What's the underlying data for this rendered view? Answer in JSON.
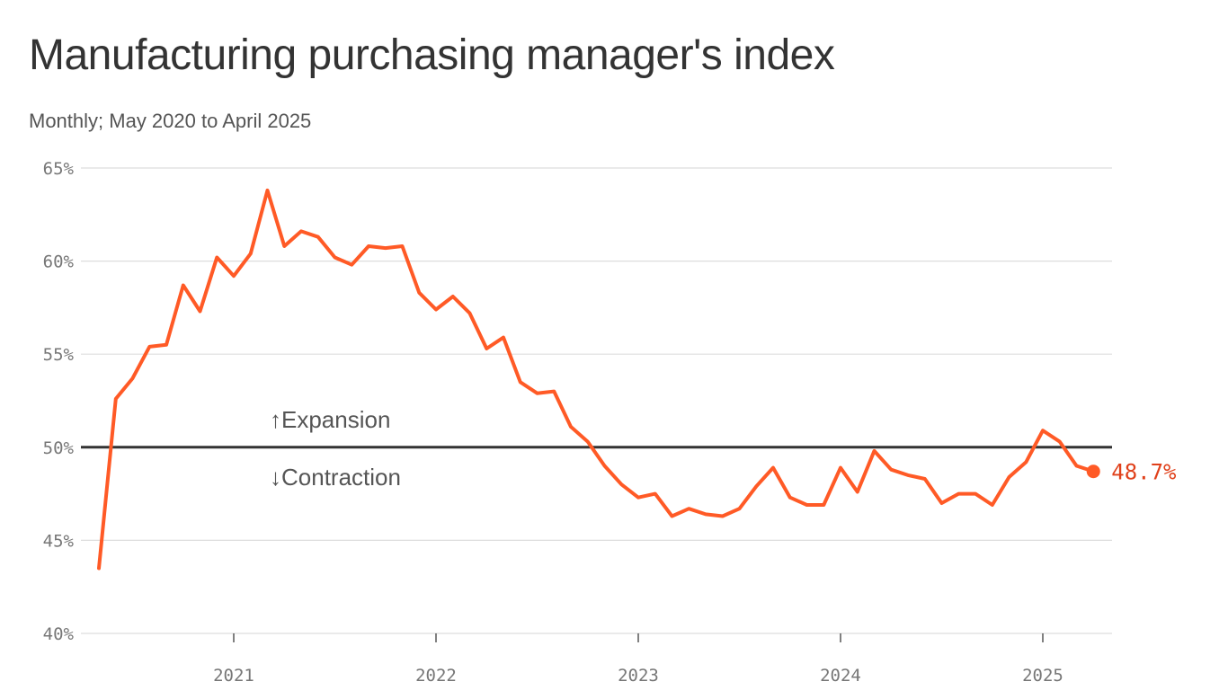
{
  "title": "Manufacturing purchasing manager's index",
  "subtitle": "Monthly; May 2020 to April 2025",
  "colors": {
    "line": "#ff5a26",
    "reference": "#333333",
    "end_label": "#e0401a"
  },
  "chart_data": {
    "type": "line",
    "title": "Manufacturing purchasing manager's index",
    "subtitle": "Monthly; May 2020 to April 2025",
    "xlabel": "",
    "ylabel": "",
    "ylim": [
      40,
      65
    ],
    "yticks": [
      40,
      45,
      50,
      55,
      60,
      65
    ],
    "ytick_labels": [
      "40%",
      "45%",
      "50%",
      "55%",
      "60%",
      "65%"
    ],
    "xticks": [
      2021,
      2022,
      2023,
      2024,
      2025
    ],
    "xtick_labels": [
      "2021",
      "2022",
      "2023",
      "2024",
      "2025"
    ],
    "grid": true,
    "reference_line": {
      "value": 50,
      "above_label": "↑Expansion",
      "below_label": "↓Contraction"
    },
    "end_label": "48.7%",
    "series": [
      {
        "name": "Manufacturing PMI",
        "x": [
          "2020-05",
          "2020-06",
          "2020-07",
          "2020-08",
          "2020-09",
          "2020-10",
          "2020-11",
          "2020-12",
          "2021-01",
          "2021-02",
          "2021-03",
          "2021-04",
          "2021-05",
          "2021-06",
          "2021-07",
          "2021-08",
          "2021-09",
          "2021-10",
          "2021-11",
          "2021-12",
          "2022-01",
          "2022-02",
          "2022-03",
          "2022-04",
          "2022-05",
          "2022-06",
          "2022-07",
          "2022-08",
          "2022-09",
          "2022-10",
          "2022-11",
          "2022-12",
          "2023-01",
          "2023-02",
          "2023-03",
          "2023-04",
          "2023-05",
          "2023-06",
          "2023-07",
          "2023-08",
          "2023-09",
          "2023-10",
          "2023-11",
          "2023-12",
          "2024-01",
          "2024-02",
          "2024-03",
          "2024-04",
          "2024-05",
          "2024-06",
          "2024-07",
          "2024-08",
          "2024-09",
          "2024-10",
          "2024-11",
          "2024-12",
          "2025-01",
          "2025-02",
          "2025-03",
          "2025-04"
        ],
        "values": [
          43.5,
          52.6,
          53.7,
          55.4,
          55.5,
          58.7,
          57.3,
          60.2,
          59.2,
          60.4,
          63.8,
          60.8,
          61.6,
          61.3,
          60.2,
          59.8,
          60.8,
          60.7,
          60.8,
          58.3,
          57.4,
          58.1,
          57.2,
          55.3,
          55.9,
          53.5,
          52.9,
          53.0,
          51.1,
          50.3,
          49.0,
          48.0,
          47.3,
          47.5,
          46.3,
          46.7,
          46.4,
          46.3,
          46.7,
          47.9,
          48.9,
          47.3,
          46.9,
          46.9,
          48.9,
          47.6,
          49.8,
          48.8,
          48.5,
          48.3,
          47.0,
          47.5,
          47.5,
          46.9,
          48.4,
          49.2,
          50.9,
          50.3,
          49.0,
          48.7
        ]
      }
    ]
  }
}
